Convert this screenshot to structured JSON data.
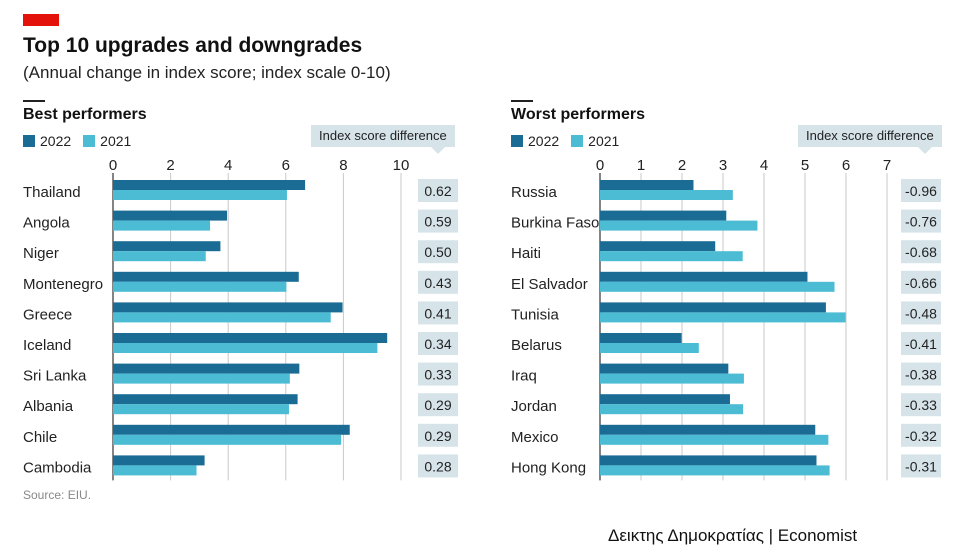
{
  "header": {
    "title": "Top 10 upgrades and downgrades",
    "subtitle": "(Annual change in index score; index scale 0-10)"
  },
  "source": "Source: EIU.",
  "credit": "Δεικτης Δημοκρατίας | Economist",
  "colors": {
    "y2022": "#1a6c95",
    "y2021": "#4bbcd3",
    "diffbox": "#d6e4ea",
    "accent": "#e3120b"
  },
  "chart_data": [
    {
      "type": "bar",
      "title": "Best performers",
      "legend": [
        "2022",
        "2021"
      ],
      "diff_header": "Index score difference",
      "xlim": [
        0,
        10
      ],
      "ticks": [
        "0",
        "2",
        "4",
        "6",
        "8",
        "10"
      ],
      "categories": [
        "Thailand",
        "Angola",
        "Niger",
        "Montenegro",
        "Greece",
        "Iceland",
        "Sri Lanka",
        "Albania",
        "Chile",
        "Cambodia"
      ],
      "series": [
        {
          "name": "2022",
          "values": [
            6.67,
            3.96,
            3.73,
            6.45,
            7.97,
            9.52,
            6.47,
            6.41,
            8.22,
            3.18
          ]
        },
        {
          "name": "2021",
          "values": [
            6.04,
            3.37,
            3.22,
            6.02,
            7.56,
            9.18,
            6.14,
            6.11,
            7.92,
            2.9
          ]
        }
      ],
      "differences": [
        "0.62",
        "0.59",
        "0.50",
        "0.43",
        "0.41",
        "0.34",
        "0.33",
        "0.29",
        "0.29",
        "0.28"
      ]
    },
    {
      "type": "bar",
      "title": "Worst performers",
      "legend": [
        "2022",
        "2021"
      ],
      "diff_header": "Index score difference",
      "xlim": [
        0,
        7
      ],
      "ticks": [
        "0",
        "1",
        "2",
        "3",
        "4",
        "5",
        "6",
        "7"
      ],
      "categories": [
        "Russia",
        "Burkina Faso",
        "Haiti",
        "El Salvador",
        "Tunisia",
        "Belarus",
        "Iraq",
        "Jordan",
        "Mexico",
        "Hong Kong"
      ],
      "series": [
        {
          "name": "2022",
          "values": [
            2.28,
            3.08,
            2.81,
            5.06,
            5.51,
            1.99,
            3.13,
            3.17,
            5.25,
            5.28
          ]
        },
        {
          "name": "2021",
          "values": [
            3.24,
            3.84,
            3.48,
            5.72,
            5.99,
            2.41,
            3.51,
            3.49,
            5.57,
            5.6
          ]
        }
      ],
      "differences": [
        "-0.96",
        "-0.76",
        "-0.68",
        "-0.66",
        "-0.48",
        "-0.41",
        "-0.38",
        "-0.33",
        "-0.32",
        "-0.31"
      ]
    }
  ]
}
